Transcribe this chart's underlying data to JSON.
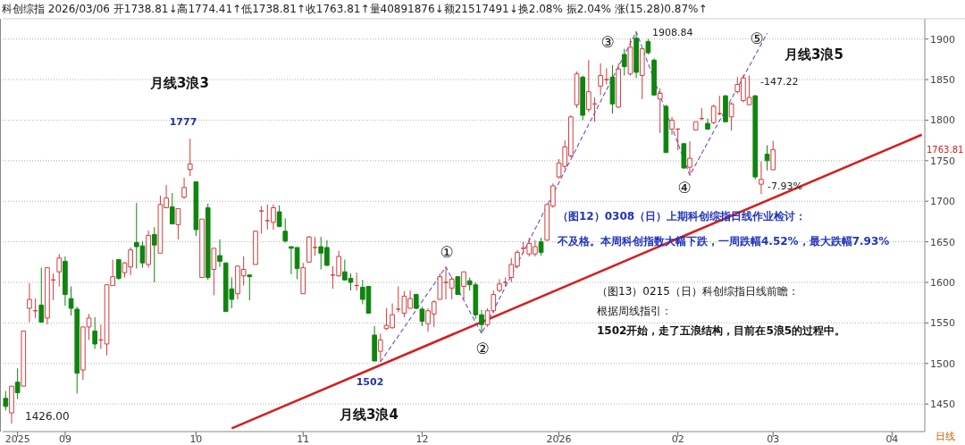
{
  "chart_data": {
    "type": "candlestick",
    "title": "科创综指 2026/03/06 开1738.81↓高1774.41↑低1738.81↑收1763.81↑量40891876↓额21517491↓换2.08% 振2.04% 涨(15.28)0.87%↑",
    "categories": [
      null,
      null,
      "2025",
      null,
      null,
      null,
      null,
      null,
      null,
      null,
      "09",
      null,
      null,
      null,
      null,
      null,
      null,
      null,
      null,
      null,
      null,
      null,
      null,
      null,
      null,
      null,
      null,
      null,
      null,
      null,
      null,
      null,
      "10",
      null,
      null,
      null,
      null,
      null,
      null,
      null,
      null,
      null,
      null,
      null,
      null,
      null,
      null,
      null,
      null,
      null,
      "11",
      null,
      null,
      null,
      null,
      null,
      null,
      null,
      null,
      null,
      null,
      null,
      null,
      null,
      null,
      null,
      null,
      null,
      null,
      null,
      "12",
      null,
      null,
      null,
      null,
      null,
      null,
      null,
      null,
      null,
      null,
      null,
      null,
      null,
      null,
      null,
      null,
      null,
      null,
      null,
      null,
      null,
      null,
      "2026",
      null,
      null,
      null,
      null,
      null,
      null,
      null,
      null,
      null,
      null,
      null,
      null,
      null,
      null,
      null,
      null,
      null,
      null,
      null,
      "02",
      null,
      null,
      null,
      null,
      null,
      null,
      null,
      null,
      null,
      null,
      null,
      null,
      null,
      null,
      null,
      "03",
      null,
      null,
      null,
      null,
      null,
      null,
      null,
      null,
      null,
      null,
      null,
      null,
      null,
      null,
      null,
      null,
      null,
      null,
      null,
      "04",
      null,
      null,
      null,
      null,
      null
    ],
    "ohlc": [
      [
        1457,
        1466,
        1442,
        1447
      ],
      [
        1439,
        1472,
        1426,
        1472
      ],
      [
        1477,
        1494,
        1456,
        1464
      ],
      [
        1472,
        1540,
        1472,
        1540
      ],
      [
        1568,
        1599,
        1551,
        1579
      ],
      [
        1565,
        1580,
        1556,
        1565
      ],
      [
        1572,
        1618,
        1551,
        1551
      ],
      [
        1556,
        1618,
        1548,
        1618
      ],
      [
        1603,
        1611,
        1578,
        1603
      ],
      [
        1613,
        1635,
        1595,
        1630
      ],
      [
        1626,
        1632,
        1571,
        1585
      ],
      [
        1580,
        1595,
        1559,
        1568
      ],
      [
        1567,
        1570,
        1463,
        1488
      ],
      [
        1492,
        1545,
        1480,
        1545
      ],
      [
        1545,
        1561,
        1529,
        1556
      ],
      [
        1540,
        1557,
        1518,
        1524
      ],
      [
        1529,
        1548,
        1518,
        1529
      ],
      [
        1524,
        1597,
        1510,
        1597
      ],
      [
        1596,
        1628,
        1596,
        1607
      ],
      [
        1628,
        1629,
        1603,
        1605
      ],
      [
        1612,
        1625,
        1606,
        1624
      ],
      [
        1619,
        1643,
        1609,
        1640
      ],
      [
        1649,
        1698,
        1617,
        1644
      ],
      [
        1645,
        1651,
        1618,
        1624
      ],
      [
        1622,
        1664,
        1618,
        1658
      ],
      [
        1659,
        1668,
        1600,
        1646
      ],
      [
        1636,
        1707,
        1636,
        1696
      ],
      [
        1692,
        1720,
        1692,
        1704
      ],
      [
        1693,
        1710,
        1672,
        1672
      ],
      [
        1671,
        1691,
        1653,
        1691
      ],
      [
        1705,
        1729,
        1703,
        1717
      ],
      [
        1739,
        1777,
        1731,
        1746
      ],
      [
        1724,
        1724,
        1657,
        1665
      ],
      [
        1606,
        1678,
        1606,
        1678
      ],
      [
        1692,
        1697,
        1603,
        1606
      ],
      [
        1616,
        1642,
        1584,
        1642
      ],
      [
        1633,
        1653,
        1619,
        1626
      ],
      [
        1624,
        1624,
        1564,
        1564
      ],
      [
        1592,
        1606,
        1568,
        1579
      ],
      [
        1586,
        1621,
        1579,
        1620
      ],
      [
        1608,
        1632,
        1596,
        1616
      ],
      [
        1609,
        1610,
        1578,
        1607
      ],
      [
        1622,
        1664,
        1622,
        1663
      ],
      [
        1688,
        1694,
        1660,
        1688
      ],
      [
        1676,
        1696,
        1665,
        1676
      ],
      [
        1674,
        1696,
        1665,
        1692
      ],
      [
        1687,
        1695,
        1668,
        1669
      ],
      [
        1663,
        1679,
        1649,
        1651
      ],
      [
        1644,
        1644,
        1610,
        1642
      ],
      [
        1643,
        1643,
        1604,
        1617
      ],
      [
        1586,
        1624,
        1586,
        1618
      ],
      [
        1625,
        1657,
        1624,
        1656
      ],
      [
        1643,
        1656,
        1633,
        1643
      ],
      [
        1644,
        1656,
        1616,
        1636
      ],
      [
        1643,
        1652,
        1620,
        1621
      ],
      [
        1609,
        1620,
        1592,
        1609
      ],
      [
        1608,
        1639,
        1607,
        1632
      ],
      [
        1613,
        1628,
        1602,
        1603
      ],
      [
        1605,
        1611,
        1590,
        1600
      ],
      [
        1596,
        1612,
        1590,
        1596
      ],
      [
        1594,
        1603,
        1573,
        1579
      ],
      [
        1595,
        1595,
        1562,
        1562
      ],
      [
        1535,
        1546,
        1503,
        1503
      ],
      [
        1515,
        1537,
        1502,
        1529
      ],
      [
        1543,
        1568,
        1541,
        1547
      ],
      [
        1544,
        1574,
        1543,
        1560
      ],
      [
        1567,
        1595,
        1563,
        1567
      ],
      [
        1562,
        1589,
        1557,
        1583
      ],
      [
        1568,
        1590,
        1568,
        1580
      ],
      [
        1585,
        1586,
        1567,
        1568
      ],
      [
        1567,
        1570,
        1546,
        1552
      ],
      [
        1549,
        1568,
        1539,
        1565
      ],
      [
        1561,
        1578,
        1545,
        1576
      ],
      [
        1579,
        1611,
        1579,
        1607
      ],
      [
        1600,
        1619,
        1579,
        1600
      ],
      [
        1593,
        1607,
        1579,
        1604
      ],
      [
        1607,
        1607,
        1585,
        1585
      ],
      [
        1595,
        1613,
        1579,
        1613
      ],
      [
        1602,
        1606,
        1590,
        1597
      ],
      [
        1597,
        1600,
        1555,
        1560
      ],
      [
        1560,
        1566,
        1537,
        1548
      ],
      [
        1548,
        1568,
        1545,
        1565
      ],
      [
        1565,
        1590,
        1562,
        1585
      ],
      [
        1590,
        1604,
        1588,
        1598
      ],
      [
        1600,
        1606,
        1595,
        1600
      ],
      [
        1606,
        1630,
        1600,
        1622
      ],
      [
        1620,
        1640,
        1617,
        1637
      ],
      [
        1642,
        1650,
        1635,
        1642
      ],
      [
        1635,
        1655,
        1632,
        1648
      ],
      [
        1635,
        1652,
        1632,
        1644
      ],
      [
        1650,
        1655,
        1633,
        1637
      ],
      [
        1652,
        1697,
        1651,
        1696
      ],
      [
        1694,
        1722,
        1692,
        1719
      ],
      [
        1730,
        1752,
        1728,
        1747
      ],
      [
        1743,
        1775,
        1740,
        1767
      ],
      [
        1756,
        1806,
        1754,
        1804
      ],
      [
        1819,
        1860,
        1815,
        1857
      ],
      [
        1853,
        1855,
        1800,
        1806
      ],
      [
        1813,
        1874,
        1810,
        1835
      ],
      [
        1820,
        1828,
        1798,
        1820
      ],
      [
        1842,
        1870,
        1831,
        1855
      ],
      [
        1850,
        1864,
        1844,
        1850
      ],
      [
        1853,
        1868,
        1808,
        1820
      ],
      [
        1816,
        1870,
        1815,
        1863
      ],
      [
        1881,
        1888,
        1855,
        1866
      ],
      [
        1857,
        1901,
        1855,
        1890
      ],
      [
        1901,
        1908.84,
        1852,
        1859
      ],
      [
        1855,
        1888,
        1826,
        1888
      ],
      [
        1897,
        1900,
        1881,
        1883
      ],
      [
        1874,
        1876,
        1830,
        1831
      ],
      [
        1826,
        1839,
        1784,
        1833
      ],
      [
        1817,
        1819,
        1760,
        1760
      ],
      [
        1789,
        1804,
        1782,
        1800
      ],
      [
        1789,
        1790,
        1763,
        1789
      ],
      [
        1771,
        1771,
        1740,
        1741
      ],
      [
        1742,
        1774,
        1732,
        1753
      ],
      [
        1788,
        1798,
        1787,
        1798
      ],
      [
        1802,
        1815,
        1800,
        1802
      ],
      [
        1796,
        1802,
        1788,
        1789
      ],
      [
        1797,
        1819,
        1795,
        1817
      ],
      [
        1808,
        1830,
        1806,
        1808
      ],
      [
        1830,
        1831,
        1798,
        1798
      ],
      [
        1804,
        1822,
        1787,
        1820
      ],
      [
        1835,
        1853,
        1833,
        1844
      ],
      [
        1824,
        1856,
        1822,
        1852
      ],
      [
        1819,
        1855,
        1819,
        1828
      ],
      [
        1830,
        1831,
        1727,
        1730
      ],
      [
        1721,
        1749,
        1708.7,
        1727
      ],
      [
        1758,
        1769,
        1738,
        1750
      ],
      [
        1738.81,
        1774.41,
        1738.81,
        1763.81
      ],
      null,
      null,
      null,
      null,
      null,
      null,
      null,
      null,
      null,
      null,
      null,
      null,
      null,
      null,
      null,
      null,
      null,
      null,
      null,
      null,
      null,
      null,
      null,
      null,
      null
    ],
    "series": [
      {
        "type": "line",
        "color": "#d42020",
        "values": [
          null,
          null,
          null,
          null,
          null,
          null,
          null,
          null,
          null,
          null,
          null,
          null,
          null,
          null,
          null,
          null,
          null,
          null,
          null,
          null,
          null,
          null,
          null,
          null,
          null,
          null,
          null,
          null,
          null,
          null,
          null,
          null,
          null,
          null,
          null,
          null,
          null,
          null,
          1420,
          null,
          null,
          null,
          null,
          null,
          null,
          null,
          null,
          null,
          null,
          null,
          null,
          null,
          null,
          null,
          null,
          null,
          null,
          null,
          null,
          null,
          null,
          null,
          null,
          null,
          null,
          null,
          null,
          null,
          null,
          null,
          null,
          null,
          null,
          null,
          null,
          null,
          null,
          null,
          null,
          null,
          null,
          null,
          null,
          null,
          null,
          null,
          null,
          null,
          null,
          null,
          null,
          null,
          null,
          null,
          null,
          null,
          null,
          null,
          null,
          null,
          null,
          null,
          null,
          null,
          null,
          null,
          null,
          null,
          null,
          null,
          null,
          null,
          null,
          null,
          null,
          null,
          null,
          null,
          null,
          null,
          null,
          null,
          null,
          null,
          null,
          null,
          null,
          null,
          null,
          null,
          null,
          null,
          null,
          null,
          null,
          null,
          null,
          null,
          null,
          null,
          null,
          null,
          null,
          null,
          null,
          null,
          null,
          null,
          null,
          null,
          null,
          null,
          null,
          null,
          1782
        ]
      },
      {
        "type": "line",
        "color": "#6650c8",
        "line_style": "dashed",
        "values": [
          null,
          null,
          null,
          null,
          null,
          null,
          null,
          null,
          null,
          null,
          null,
          null,
          null,
          null,
          null,
          null,
          null,
          null,
          null,
          null,
          null,
          null,
          null,
          null,
          null,
          null,
          null,
          null,
          null,
          null,
          null,
          null,
          null,
          null,
          null,
          null,
          null,
          null,
          null,
          null,
          null,
          null,
          null,
          null,
          null,
          null,
          null,
          null,
          null,
          null,
          null,
          null,
          null,
          null,
          null,
          null,
          null,
          null,
          null,
          null,
          null,
          null,
          null,
          1502,
          null,
          null,
          null,
          null,
          null,
          null,
          null,
          null,
          null,
          null,
          1619,
          null,
          null,
          null,
          null,
          null,
          1537,
          null,
          null,
          null,
          null,
          null,
          null,
          null,
          null,
          null,
          null,
          null,
          null,
          null,
          null,
          null,
          null,
          null,
          null,
          null,
          null,
          null,
          null,
          null,
          null,
          null,
          1909,
          null,
          null,
          null,
          null,
          null,
          null,
          null,
          null,
          1732,
          null,
          null,
          null,
          null,
          null,
          null,
          null,
          null,
          null,
          null,
          null,
          null,
          1907,
          null,
          null,
          null,
          null,
          null,
          null,
          null,
          null,
          null,
          null,
          null,
          null,
          null,
          null,
          null,
          null,
          null,
          null,
          null,
          null,
          null,
          null,
          null,
          null,
          null,
          null
        ]
      }
    ],
    "ylim": [
      1416,
      1925
    ],
    "yticks": [
      1450,
      1500,
      1550,
      1600,
      1650,
      1700,
      1750,
      1800,
      1850,
      1900
    ],
    "grid": "y",
    "annotations": [
      "月线3浪3",
      "1777",
      "1426.00",
      "1502",
      "月线3浪4",
      "①",
      "②",
      "③",
      "④",
      "⑤",
      "1908.84",
      "月线3浪5",
      "-147.22",
      "-7.93%",
      "1763.81",
      "（图12）0308（日）上期科创综指日线作业检讨：",
      "不及格。本周科创指数大幅下跌，一周跌幅4.52%，最大跌幅7.93%",
      "（图13）0215（日）科创综指日线前瞻：",
      "根据周线指引：",
      "1502开始，走了五浪结构，目前在5浪5的过程中。",
      "日线"
    ]
  }
}
